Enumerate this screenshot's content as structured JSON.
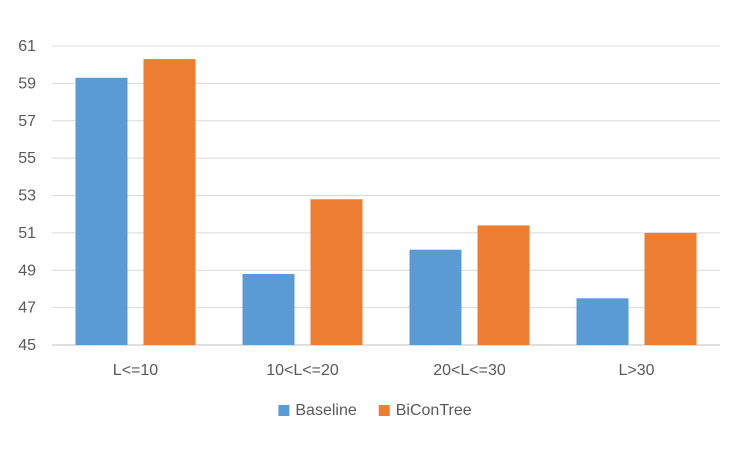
{
  "chart_data": {
    "type": "bar",
    "title": "",
    "xlabel": "",
    "ylabel": "",
    "categories": [
      "L<=10",
      "10<L<=20",
      "20<L<=30",
      "L>30"
    ],
    "series": [
      {
        "name": "Baseline",
        "values": [
          59.3,
          48.8,
          50.1,
          47.5
        ],
        "color": "#5B9BD5"
      },
      {
        "name": "BiConTree",
        "values": [
          60.3,
          52.8,
          51.4,
          51.0
        ],
        "color": "#ED7D31"
      }
    ],
    "ylim": [
      45,
      61
    ],
    "yticks": [
      "45",
      "47",
      "49",
      "51",
      "53",
      "55",
      "57",
      "59",
      "61"
    ],
    "grid": true,
    "legend_position": "bottom"
  }
}
